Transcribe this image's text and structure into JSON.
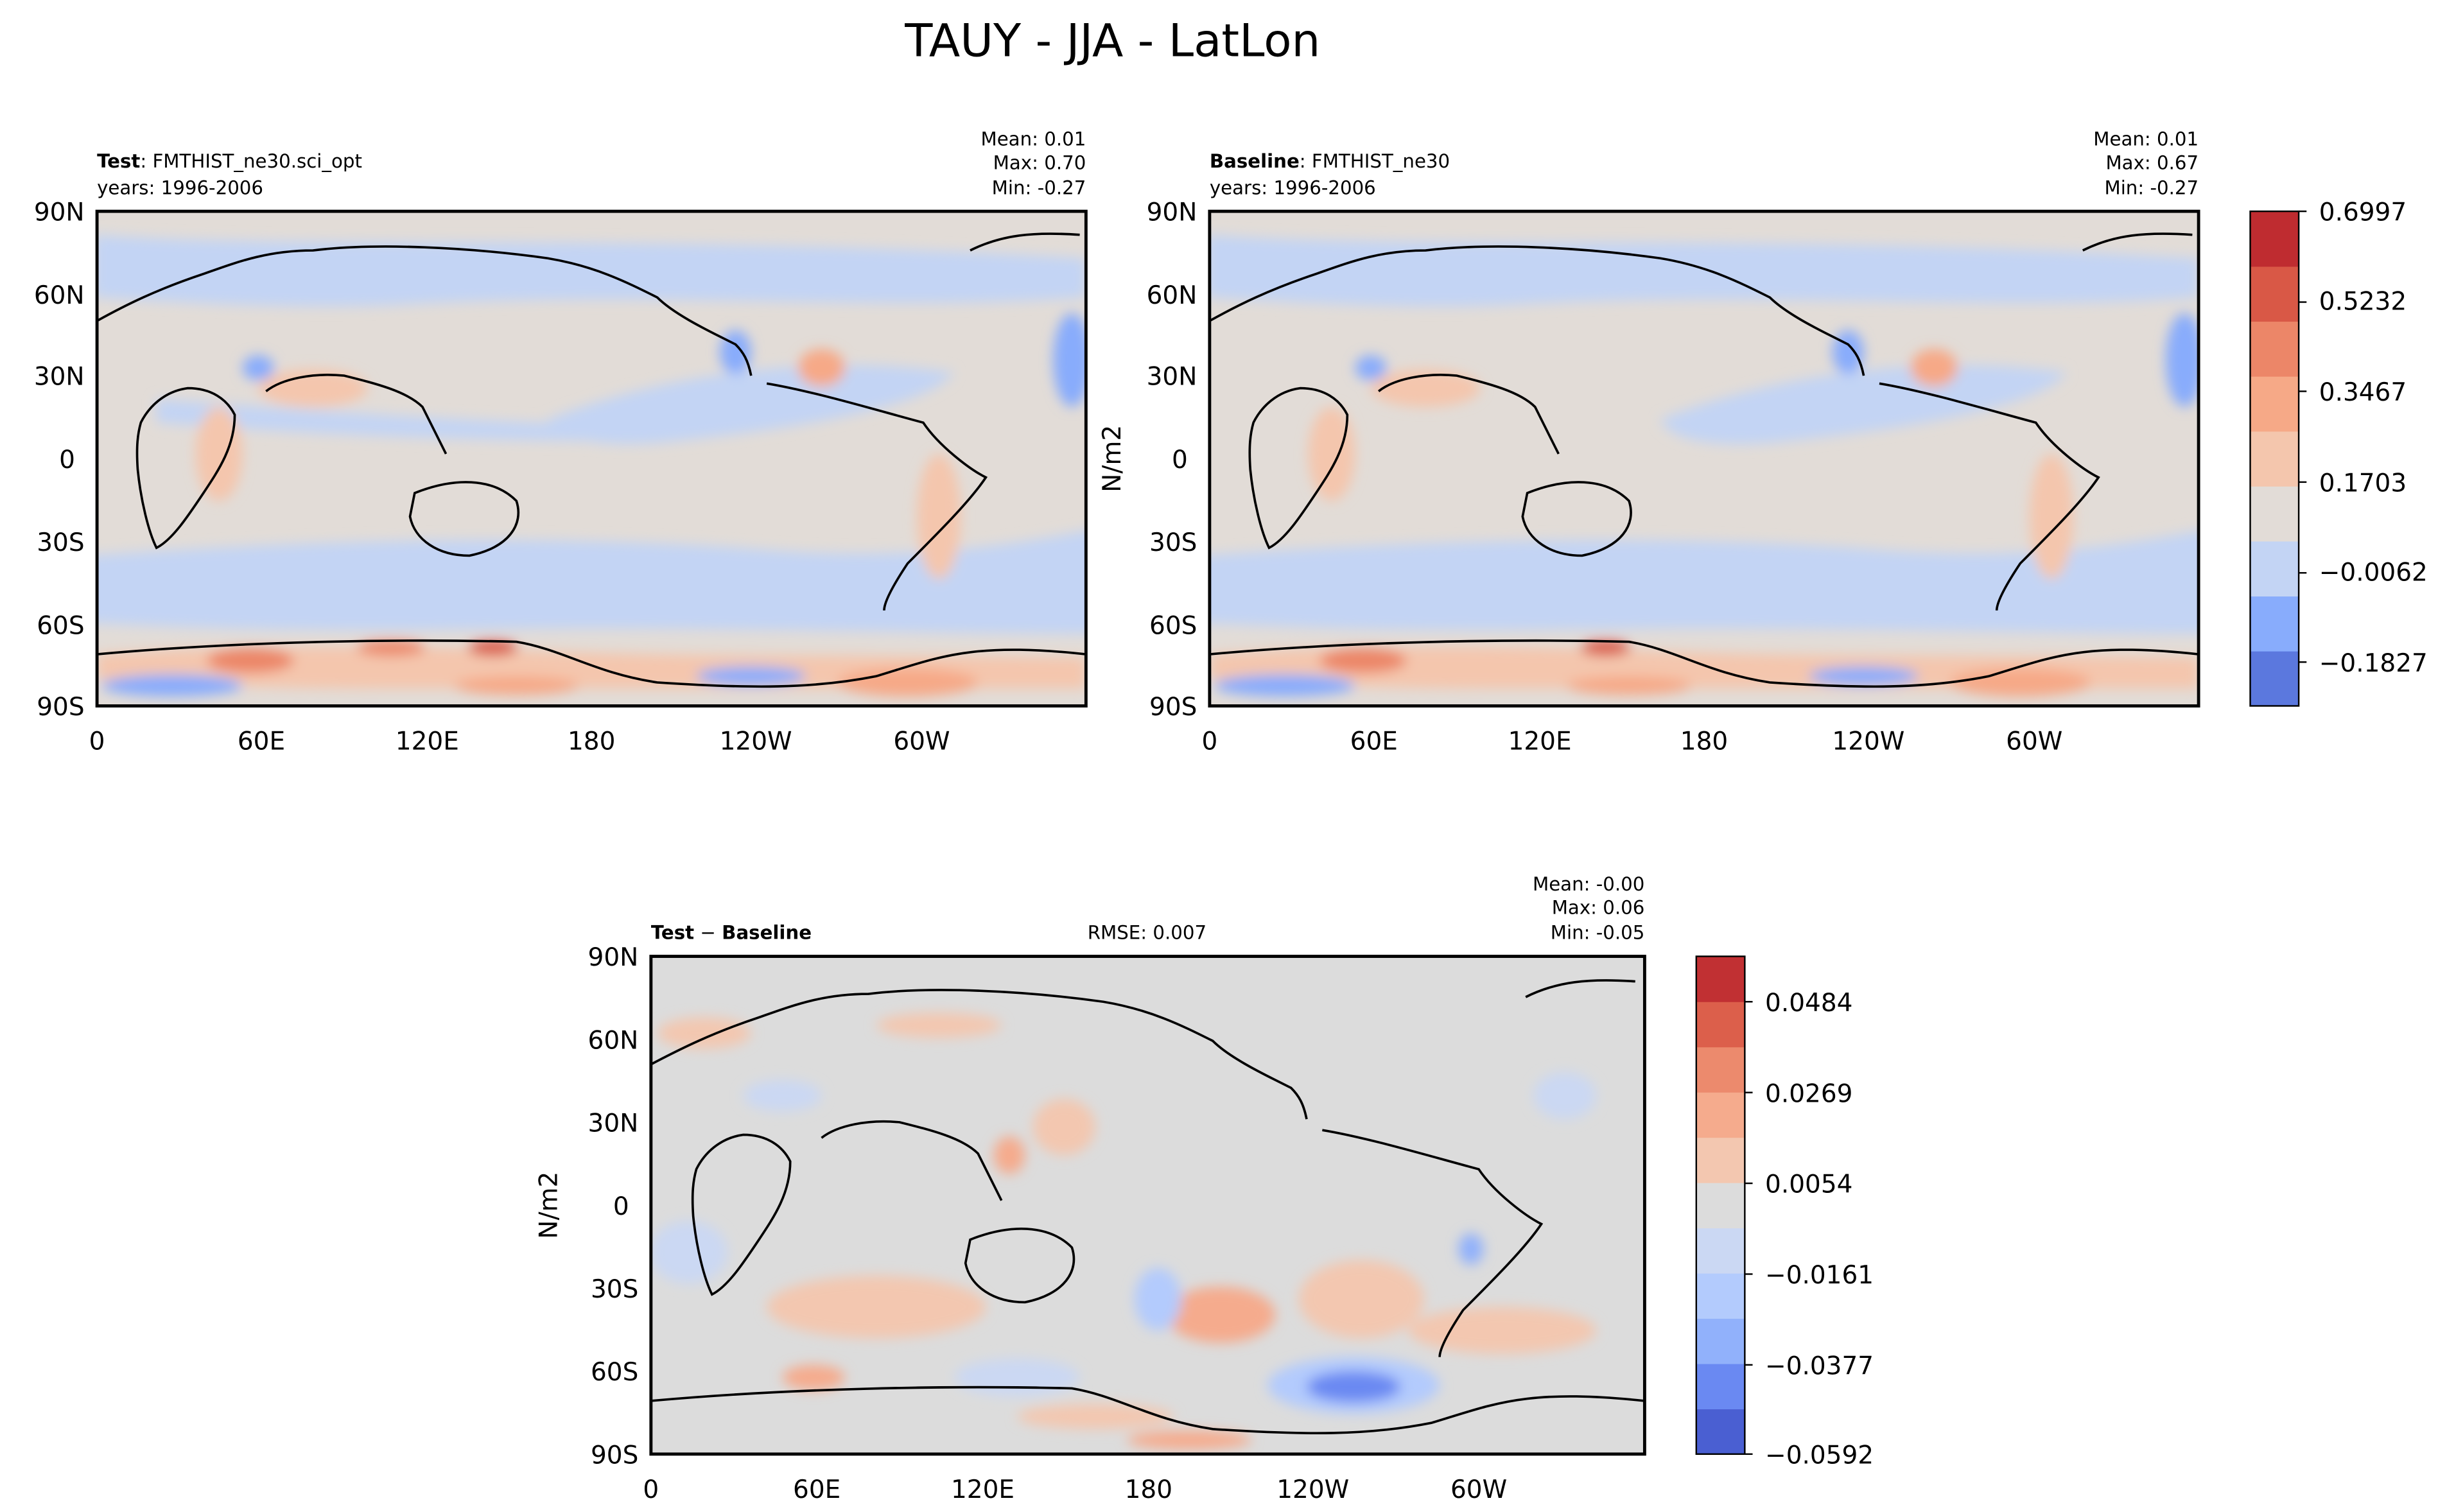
{
  "figure": {
    "title": "TAUY - JJA - LatLon"
  },
  "colors": {
    "upper_levels": [
      "#5b78de",
      "#88acfc",
      "#c3d4f4",
      "#e2dcd7",
      "#f4c6ad",
      "#f6a987",
      "#ec8668",
      "#d95846",
      "#bf2c30"
    ],
    "diff_levels": [
      "#4a5fd2",
      "#6a89f2",
      "#91b1fb",
      "#b3cbfd",
      "#cbd8f3",
      "#dcdcdc",
      "#f3c7b0",
      "#f5ab8d",
      "#ec8a6d",
      "#dc5f4b",
      "#c13033"
    ],
    "land_outline": "#000000"
  },
  "chart_data": [
    {
      "type": "heatmap",
      "panel": "test",
      "label_bold": "Test",
      "label_rest": ": FMTHIST_ne30.sci_opt",
      "years": "years: 1996-2006",
      "stats": {
        "mean": "Mean:  0.01",
        "max": "Max:  0.70",
        "min": "Min: -0.27"
      },
      "xticks": [
        "0",
        "60E",
        "120E",
        "180",
        "120W",
        "60W"
      ],
      "yticks": [
        "90N",
        "60N",
        "30N",
        "0",
        "30S",
        "60S",
        "90S"
      ],
      "ylabel": ""
    },
    {
      "type": "heatmap",
      "panel": "baseline",
      "label_bold": "Baseline",
      "label_rest": ": FMTHIST_ne30",
      "years": "years: 1996-2006",
      "stats": {
        "mean": "Mean:  0.01",
        "max": "Max:  0.67",
        "min": "Min: -0.27"
      },
      "xticks": [
        "0",
        "60E",
        "120E",
        "180",
        "120W",
        "60W"
      ],
      "yticks": [
        "90N",
        "60N",
        "30N",
        "0",
        "30S",
        "60S",
        "90S"
      ],
      "ylabel": "N/m2"
    },
    {
      "type": "heatmap",
      "panel": "difference",
      "label_bold": "Test",
      "label_minus": " − ",
      "label_bold2": "Baseline",
      "rmse": "RMSE: 0.007",
      "stats": {
        "mean": "Mean: -0.00",
        "max": "Max:  0.06",
        "min": "Min: -0.05"
      },
      "xticks": [
        "0",
        "60E",
        "120E",
        "180",
        "120W",
        "60W"
      ],
      "yticks": [
        "90N",
        "60N",
        "30N",
        "0",
        "30S",
        "60S",
        "90S"
      ],
      "ylabel": "N/m2"
    }
  ],
  "colorbars": {
    "upper": {
      "labels": [
        "0.6997",
        "0.5232",
        "0.3467",
        "0.1703",
        "−0.0062",
        "−0.1827"
      ],
      "min": -0.27,
      "max": 0.6997
    },
    "lower": {
      "labels": [
        "0.0484",
        "0.0269",
        "0.0054",
        "−0.0161",
        "−0.0377",
        "−0.0592"
      ],
      "min": -0.0592,
      "max": 0.0592
    }
  }
}
